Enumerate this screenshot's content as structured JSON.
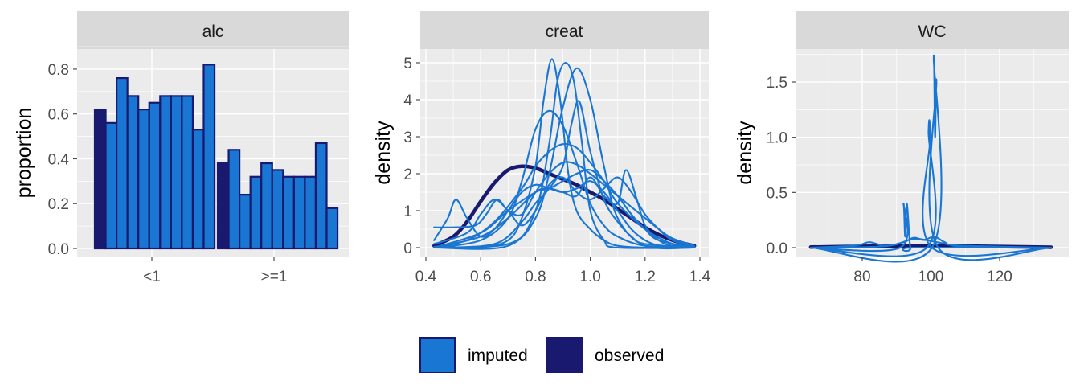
{
  "colors": {
    "imputed": "#1976d2",
    "observed": "#191970",
    "panel_bg": "#ebebeb",
    "strip_bg": "#d9d9d9",
    "grid_major": "#ffffff",
    "tick": "#4d4d4d"
  },
  "legend": {
    "items": [
      {
        "key": "imputed",
        "label": "imputed"
      },
      {
        "key": "observed",
        "label": "observed"
      }
    ],
    "position": "bottom"
  },
  "chart_data": [
    {
      "type": "bar",
      "panel": "alc",
      "title": "alc",
      "ylabel": "proportion",
      "xlabel": "",
      "categories": [
        "<1",
        ">=1"
      ],
      "ylim": [
        0,
        0.85
      ],
      "yticks": [
        0.0,
        0.2,
        0.4,
        0.6,
        0.8
      ],
      "ytick_labels": [
        "0.0",
        "0.2",
        "0.4",
        "0.6",
        "0.8"
      ],
      "grid": true,
      "series": [
        {
          "role": "observed",
          "values": [
            0.62,
            0.38
          ]
        },
        {
          "role": "imputed",
          "index": 1,
          "values": [
            0.56,
            0.44
          ]
        },
        {
          "role": "imputed",
          "index": 2,
          "values": [
            0.76,
            0.24
          ]
        },
        {
          "role": "imputed",
          "index": 3,
          "values": [
            0.68,
            0.32
          ]
        },
        {
          "role": "imputed",
          "index": 4,
          "values": [
            0.62,
            0.38
          ]
        },
        {
          "role": "imputed",
          "index": 5,
          "values": [
            0.65,
            0.35
          ]
        },
        {
          "role": "imputed",
          "index": 6,
          "values": [
            0.68,
            0.32
          ]
        },
        {
          "role": "imputed",
          "index": 7,
          "values": [
            0.68,
            0.32
          ]
        },
        {
          "role": "imputed",
          "index": 8,
          "values": [
            0.68,
            0.32
          ]
        },
        {
          "role": "imputed",
          "index": 9,
          "values": [
            0.53,
            0.47
          ]
        },
        {
          "role": "imputed",
          "index": 10,
          "values": [
            0.82,
            0.18
          ]
        }
      ]
    },
    {
      "type": "line",
      "panel": "creat",
      "title": "creat",
      "ylabel": "density",
      "xlabel": "",
      "xlim": [
        0.42,
        1.39
      ],
      "ylim": [
        -0.15,
        5.25
      ],
      "xticks": [
        0.4,
        0.6,
        0.8,
        1.0,
        1.2,
        1.4
      ],
      "xtick_labels": [
        "0.4",
        "0.6",
        "0.8",
        "1.0",
        "1.2",
        "1.4"
      ],
      "yticks": [
        0,
        1,
        2,
        3,
        4,
        5
      ],
      "ytick_labels": [
        "0",
        "1",
        "2",
        "3",
        "4",
        "5"
      ],
      "grid": true,
      "series": [
        {
          "role": "observed",
          "x": [
            0.43,
            0.5,
            0.55,
            0.6,
            0.65,
            0.7,
            0.75,
            0.8,
            0.85,
            0.9,
            0.95,
            1.0,
            1.05,
            1.1,
            1.15,
            1.2,
            1.25,
            1.3,
            1.35,
            1.38
          ],
          "y": [
            0.05,
            0.3,
            0.7,
            1.25,
            1.75,
            2.1,
            2.2,
            2.15,
            2.0,
            1.85,
            1.7,
            1.5,
            1.3,
            1.05,
            0.8,
            0.55,
            0.35,
            0.2,
            0.1,
            0.05
          ]
        },
        {
          "role": "imputed",
          "index": 1,
          "x": [
            0.43,
            0.48,
            0.51,
            0.55,
            0.6,
            0.65,
            0.7,
            0.75,
            0.8,
            0.85,
            0.9,
            0.95,
            1.0,
            1.05,
            1.1,
            1.15,
            1.2,
            1.25,
            1.3
          ],
          "y": [
            0.2,
            0.8,
            1.3,
            0.8,
            0.3,
            0.5,
            1.0,
            1.5,
            1.7,
            1.6,
            1.5,
            1.6,
            1.8,
            1.5,
            1.0,
            0.5,
            0.2,
            0.05,
            0.0
          ]
        },
        {
          "role": "imputed",
          "index": 2,
          "x": [
            0.43,
            0.6,
            0.7,
            0.75,
            0.8,
            0.83,
            0.86,
            0.89,
            0.92,
            0.95,
            1.0,
            1.05,
            1.1,
            1.2,
            1.38
          ],
          "y": [
            0.0,
            0.02,
            0.2,
            0.8,
            2.2,
            4.0,
            5.1,
            4.0,
            2.0,
            1.0,
            0.5,
            0.2,
            0.05,
            0.0,
            0.0
          ]
        },
        {
          "role": "imputed",
          "index": 3,
          "x": [
            0.43,
            0.7,
            0.8,
            0.85,
            0.88,
            0.91,
            0.94,
            0.97,
            1.0,
            1.05,
            1.1,
            1.38
          ],
          "y": [
            0.0,
            0.05,
            1.0,
            2.8,
            4.5,
            5.0,
            4.5,
            2.8,
            1.0,
            0.2,
            0.0,
            0.0
          ]
        },
        {
          "role": "imputed",
          "index": 4,
          "x": [
            0.43,
            0.7,
            0.8,
            0.85,
            0.9,
            0.95,
            1.0,
            1.05,
            1.1,
            1.2,
            1.38
          ],
          "y": [
            0.0,
            0.1,
            0.8,
            2.0,
            3.8,
            4.85,
            4.0,
            2.2,
            0.8,
            0.05,
            0.0
          ]
        },
        {
          "role": "imputed",
          "index": 5,
          "x": [
            0.43,
            0.6,
            0.7,
            0.75,
            0.8,
            0.85,
            0.9,
            0.95,
            1.0,
            1.05,
            1.1,
            1.2,
            1.38
          ],
          "y": [
            0.0,
            0.2,
            0.8,
            1.8,
            3.2,
            3.7,
            3.3,
            2.3,
            1.2,
            0.6,
            0.3,
            0.05,
            0.0
          ]
        },
        {
          "role": "imputed",
          "index": 6,
          "x": [
            0.43,
            0.65,
            0.75,
            0.8,
            0.85,
            0.9,
            0.93,
            0.96,
            1.0,
            1.05,
            1.1,
            1.15,
            1.2,
            1.38
          ],
          "y": [
            0.0,
            0.1,
            0.7,
            1.2,
            1.6,
            2.2,
            3.3,
            3.95,
            2.6,
            1.3,
            0.7,
            0.3,
            0.1,
            0.0
          ]
        },
        {
          "role": "imputed",
          "index": 7,
          "x": [
            0.43,
            0.55,
            0.65,
            0.75,
            0.8,
            0.85,
            0.9,
            0.95,
            1.0,
            1.05,
            1.1,
            1.2,
            1.3,
            1.38
          ],
          "y": [
            0.02,
            0.2,
            0.7,
            1.6,
            2.2,
            2.6,
            2.8,
            2.7,
            2.3,
            1.8,
            1.2,
            0.5,
            0.1,
            0.02
          ]
        },
        {
          "role": "imputed",
          "index": 8,
          "x": [
            0.43,
            0.55,
            0.6,
            0.65,
            0.7,
            0.75,
            0.8,
            0.85,
            0.9,
            0.95,
            1.0,
            1.05,
            1.1,
            1.15,
            1.2,
            1.25,
            1.3,
            1.38
          ],
          "y": [
            0.1,
            0.4,
            0.9,
            1.3,
            1.0,
            0.6,
            1.0,
            1.7,
            1.9,
            1.5,
            1.3,
            1.6,
            1.9,
            1.5,
            0.9,
            0.5,
            0.2,
            0.02
          ]
        },
        {
          "role": "imputed",
          "index": 9,
          "x": [
            0.43,
            0.6,
            0.7,
            0.8,
            0.85,
            0.9,
            0.95,
            1.0,
            1.05,
            1.1,
            1.13,
            1.17,
            1.2,
            1.25,
            1.3,
            1.38
          ],
          "y": [
            0.0,
            0.3,
            0.8,
            1.5,
            1.6,
            1.5,
            1.4,
            1.9,
            1.4,
            1.2,
            2.1,
            1.3,
            0.6,
            0.2,
            0.05,
            0.0
          ]
        },
        {
          "role": "imputed",
          "index": 10,
          "x": [
            0.43,
            0.5,
            0.58,
            0.62,
            0.66,
            0.7,
            0.75,
            0.8,
            0.85,
            0.9,
            0.95,
            1.0,
            1.05,
            1.1,
            1.15,
            1.2,
            1.25,
            1.3,
            1.38
          ],
          "y": [
            0.55,
            0.55,
            0.6,
            0.9,
            1.3,
            1.0,
            0.9,
            1.5,
            2.0,
            2.3,
            2.25,
            2.0,
            1.7,
            1.4,
            1.1,
            0.8,
            0.5,
            0.25,
            0.05
          ]
        },
        {
          "role": "imputed",
          "index": 11,
          "x": [
            0.43,
            0.6,
            0.7,
            0.8,
            0.85,
            0.9,
            0.95,
            1.0,
            1.05,
            1.1,
            1.15,
            1.2,
            1.25,
            1.38
          ],
          "y": [
            0.0,
            0.4,
            1.0,
            1.5,
            1.6,
            1.8,
            2.0,
            2.1,
            1.8,
            1.4,
            0.9,
            0.5,
            0.2,
            0.0
          ]
        }
      ]
    },
    {
      "type": "line",
      "panel": "WC",
      "title": "WC",
      "ylabel": "density",
      "xlabel": "",
      "xlim": [
        64,
        137
      ],
      "ylim": [
        -0.035,
        1.82
      ],
      "xticks": [
        80,
        100,
        120
      ],
      "xtick_labels": [
        "80",
        "100",
        "120"
      ],
      "yticks": [
        0.0,
        0.5,
        1.0,
        1.5
      ],
      "ytick_labels": [
        "0.0",
        "0.5",
        "1.0",
        "1.5"
      ],
      "grid": true,
      "series": [
        {
          "role": "observed",
          "x": [
            65,
            80,
            90,
            100,
            110,
            120,
            135
          ],
          "y": [
            0.005,
            0.012,
            0.015,
            0.016,
            0.014,
            0.01,
            0.004
          ]
        },
        {
          "role": "imputed",
          "index": 1,
          "x": [
            65,
            91,
            92,
            92.5,
            93,
            94,
            95,
            135
          ],
          "y": [
            0.0,
            0.0,
            0.4,
            0.1,
            0.4,
            0.0,
            0.0,
            0.0
          ]
        },
        {
          "role": "imputed",
          "index": 2,
          "x": [
            65,
            98.8,
            99.3,
            99.8,
            100.3,
            135
          ],
          "y": [
            0.0,
            0.0,
            1.05,
            1.0,
            0.0,
            0.0
          ]
        },
        {
          "role": "imputed",
          "index": 3,
          "x": [
            65,
            100.3,
            100.8,
            101.2,
            101.6,
            102.1,
            135
          ],
          "y": [
            0.0,
            0.0,
            1.72,
            1.0,
            1.5,
            0.0,
            0.0
          ]
        },
        {
          "role": "imputed",
          "index": 4,
          "x": [
            65,
            78,
            82,
            86,
            90,
            95,
            100,
            105,
            110,
            135
          ],
          "y": [
            0.0,
            0.02,
            0.05,
            0.02,
            0.03,
            0.08,
            0.06,
            0.03,
            0.01,
            0.0
          ]
        },
        {
          "role": "imputed",
          "index": 5,
          "x": [
            65,
            85,
            92,
            95,
            98,
            101,
            104,
            108,
            135
          ],
          "y": [
            0.0,
            0.01,
            0.05,
            0.09,
            0.07,
            0.1,
            0.05,
            0.02,
            0.0
          ]
        }
      ]
    }
  ]
}
